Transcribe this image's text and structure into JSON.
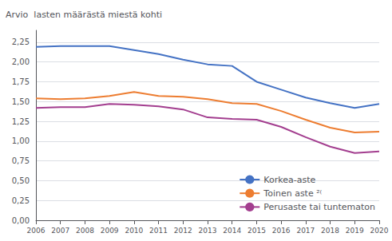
{
  "chart_data": {
    "type": "line",
    "ylabel": "Arvio  lasten määrästä miestä kohti",
    "x": [
      2006,
      2007,
      2008,
      2009,
      2010,
      2011,
      2012,
      2013,
      2014,
      2015,
      2016,
      2017,
      2018,
      2019,
      2020
    ],
    "series": [
      {
        "name": "Korkea-aste",
        "color": "#4472C4",
        "values": [
          2.19,
          2.2,
          2.2,
          2.2,
          2.15,
          2.1,
          2.03,
          1.97,
          1.95,
          1.75,
          1.65,
          1.55,
          1.48,
          1.42,
          1.47
        ]
      },
      {
        "name": "Toinen aste ²⁽",
        "color": "#ED7D31",
        "values": [
          1.54,
          1.53,
          1.54,
          1.57,
          1.62,
          1.57,
          1.56,
          1.53,
          1.48,
          1.47,
          1.38,
          1.27,
          1.17,
          1.11,
          1.12
        ]
      },
      {
        "name": "Perusaste tai tuntematon",
        "color": "#A33E8F",
        "values": [
          1.42,
          1.43,
          1.43,
          1.47,
          1.46,
          1.44,
          1.4,
          1.3,
          1.28,
          1.27,
          1.18,
          1.05,
          0.93,
          0.85,
          0.87
        ]
      }
    ],
    "xlim": [
      2006,
      2020
    ],
    "xticks": [
      2006,
      2007,
      2008,
      2009,
      2010,
      2011,
      2012,
      2013,
      2014,
      2015,
      2016,
      2017,
      2018,
      2019,
      2020
    ],
    "ylim": [
      0.0,
      2.4
    ],
    "yticks": [
      {
        "value": 0.0,
        "label": "0,00"
      },
      {
        "value": 0.25,
        "label": "0,25"
      },
      {
        "value": 0.5,
        "label": "0,50"
      },
      {
        "value": 0.75,
        "label": "0,75"
      },
      {
        "value": 1.0,
        "label": "1,00"
      },
      {
        "value": 1.25,
        "label": "1,25"
      },
      {
        "value": 1.5,
        "label": "1,50"
      },
      {
        "value": 1.75,
        "label": "1,75"
      },
      {
        "value": 2.0,
        "label": "2,00"
      },
      {
        "value": 2.25,
        "label": "2,25"
      }
    ],
    "grid": true,
    "legend": "lower right"
  }
}
